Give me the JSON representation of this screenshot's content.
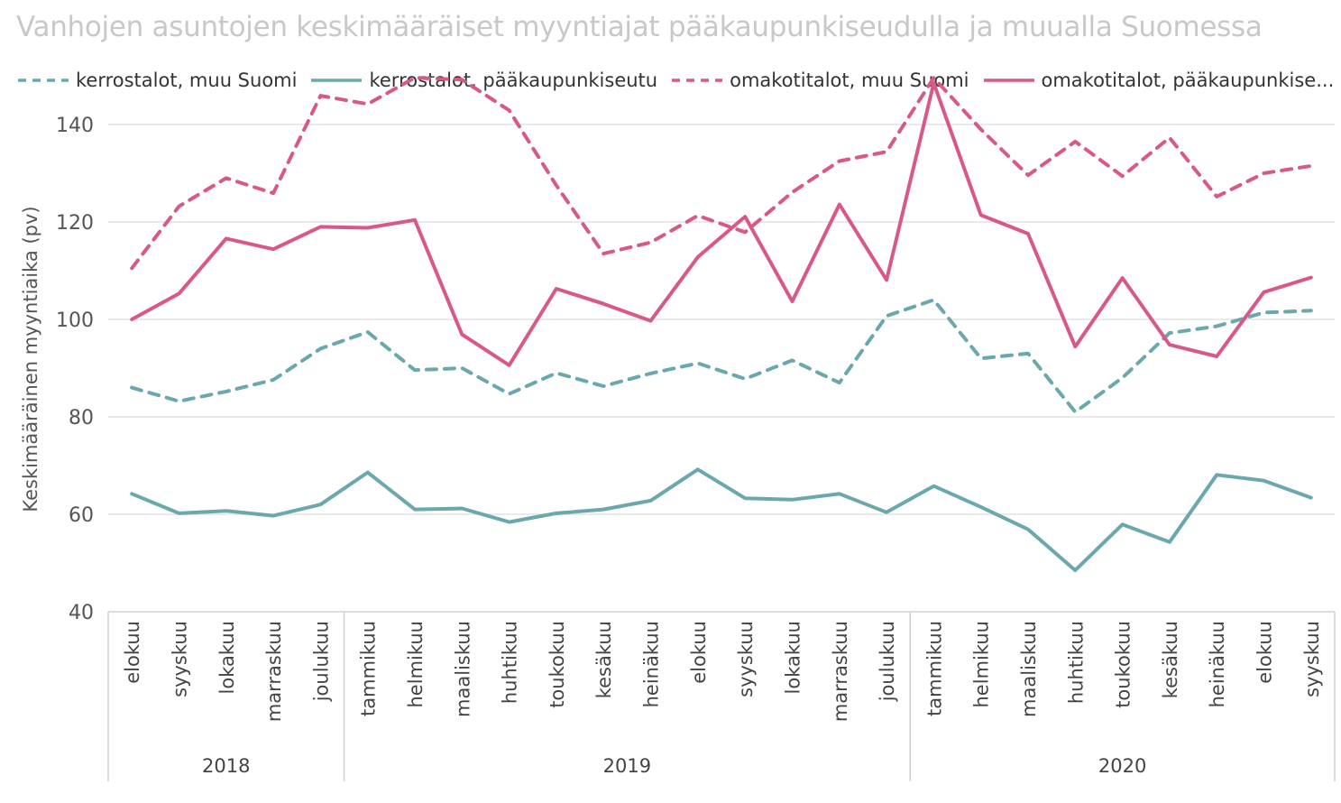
{
  "chart_data": {
    "type": "line",
    "title": "Vanhojen asuntojen keskimääräiset myyntiajat pääkaupunkiseudulla ja muualla Suomessa",
    "ylabel": "Keskimääräinen myyntiaika (pv)",
    "xlabel": "",
    "ylim": [
      40,
      150
    ],
    "yticks": [
      40,
      60,
      80,
      100,
      120,
      140
    ],
    "grid": true,
    "legend_position": "top",
    "categories": [
      "elokuu",
      "syyskuu",
      "lokakuu",
      "marraskuu",
      "joulukuu",
      "tammikuu",
      "helmikuu",
      "maaliskuu",
      "huhtikuu",
      "toukokuu",
      "kesäkuu",
      "heinäkuu",
      "elokuu",
      "syyskuu",
      "lokakuu",
      "marraskuu",
      "joulukuu",
      "tammikuu",
      "helmikuu",
      "maaliskuu",
      "huhtikuu",
      "toukokuu",
      "kesäkuu",
      "heinäkuu",
      "elokuu",
      "syyskuu"
    ],
    "year_groups": [
      {
        "label": "2018",
        "count": 5
      },
      {
        "label": "2019",
        "count": 12
      },
      {
        "label": "2020",
        "count": 9
      }
    ],
    "series": [
      {
        "name": "kerrostalot, muu Suomi",
        "color": "#6aa8ad",
        "dash": true,
        "values": [
          86,
          83.2,
          85.2,
          87.6,
          94,
          97.4,
          89.6,
          90,
          84.7,
          89,
          86.3,
          88.9,
          91,
          87.8,
          91.6,
          87,
          100.7,
          104,
          92,
          93,
          81,
          88,
          97.2,
          98.6,
          101.4,
          101.8
        ]
      },
      {
        "name": "kerrostalot, pääkaupunkiseutu",
        "color": "#6aa8ad",
        "dash": false,
        "values": [
          64.2,
          60.2,
          60.7,
          59.7,
          62,
          68.6,
          61,
          61.2,
          58.4,
          60.2,
          61,
          62.8,
          69.2,
          63.3,
          63,
          64.2,
          60.4,
          65.8,
          61.5,
          56.9,
          48.5,
          57.9,
          54.3,
          68.1,
          66.9,
          63.4
        ]
      },
      {
        "name": "omakotitalot, muu Suomi",
        "color": "#d9588a",
        "dash": true,
        "values": [
          110.5,
          123.2,
          129,
          125.9,
          145.9,
          144.2,
          149.6,
          149.2,
          142.9,
          127.5,
          113.5,
          115.8,
          121.3,
          117.9,
          126.1,
          132.5,
          134.4,
          149.6,
          139,
          129.6,
          136.5,
          129.4,
          137.3,
          125.2,
          130,
          131.5
        ]
      },
      {
        "name": "omakotitalot, pääkaupunkiseutu",
        "legend_label": "omakotitalot, pääkaupunkise...",
        "color": "#d9588a",
        "dash": false,
        "values": [
          100,
          105.3,
          116.6,
          114.4,
          119,
          118.8,
          120.4,
          96.9,
          90.6,
          106.3,
          103.2,
          99.7,
          112.8,
          121.1,
          103.7,
          123.6,
          108.1,
          148.5,
          121.4,
          117.6,
          94.4,
          108.5,
          94.8,
          92.4,
          105.6,
          108.6
        ]
      }
    ]
  }
}
